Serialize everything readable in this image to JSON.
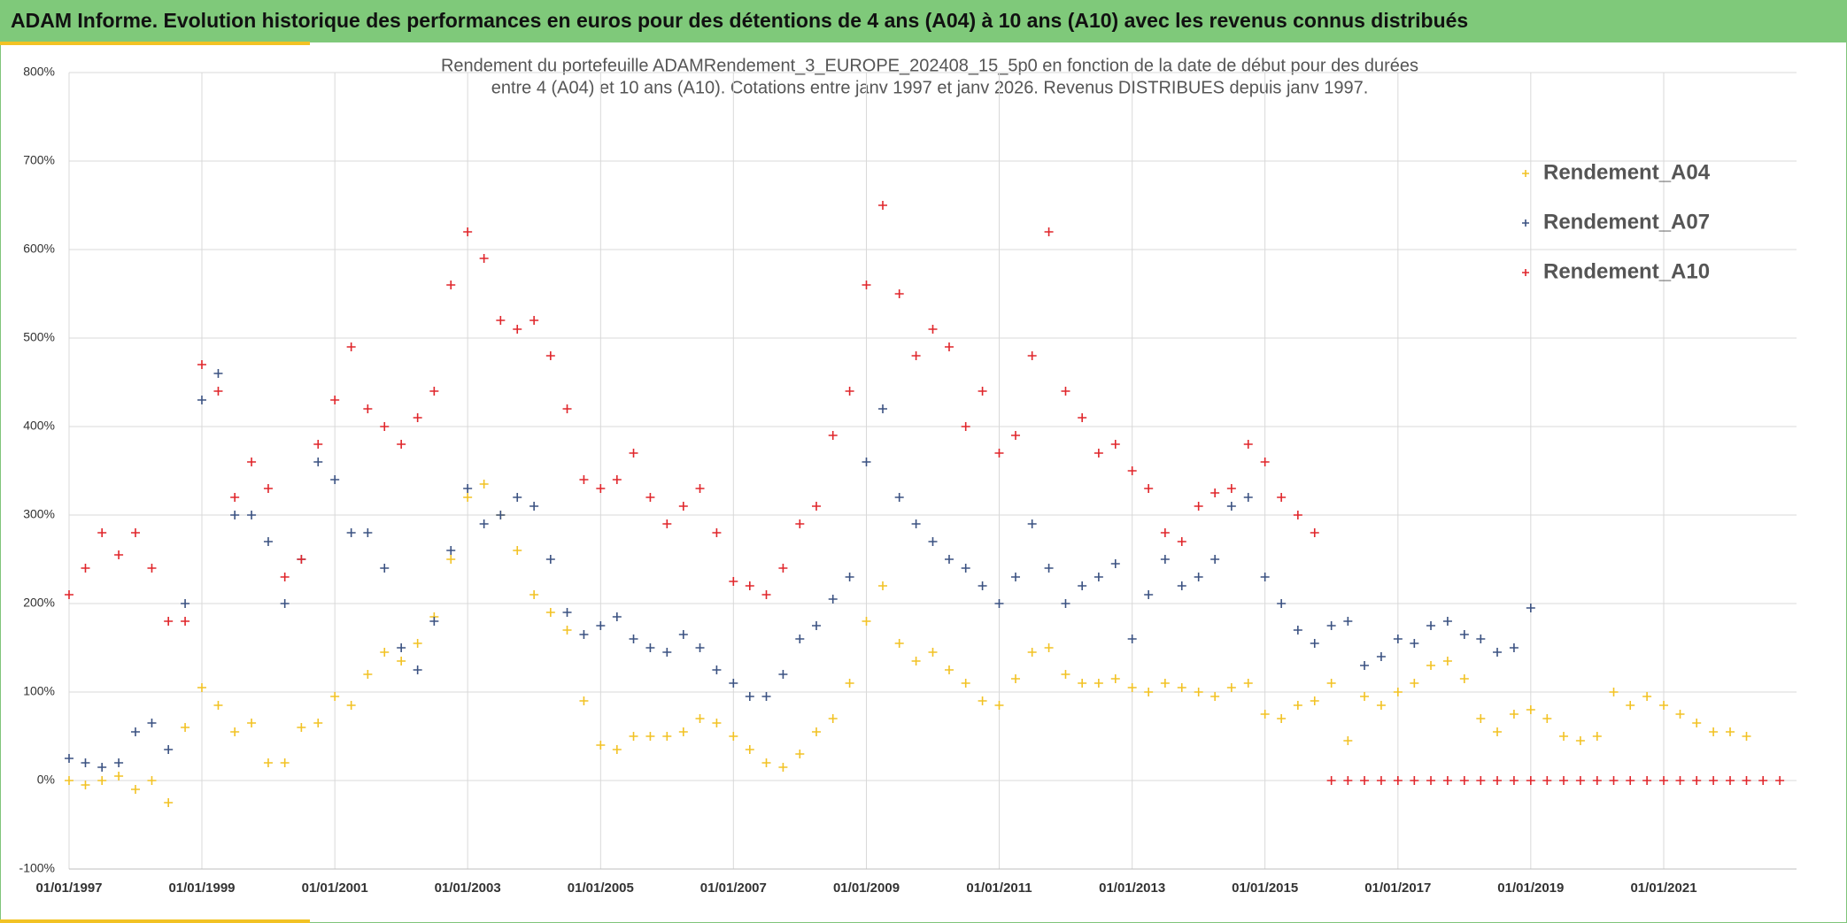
{
  "header": "ADAM Informe. Evolution historique des performances en euros pour des détentions de 4 ans (A04) à 10 ans (A10) avec les revenus connus distribués",
  "chart_data": {
    "type": "scatter",
    "title": [
      "Rendement du portefeuille ADAMRendement_3_EUROPE_202408_15_5p0  en fonction de la date de début pour des durées",
      "entre 4 (A04) et 10 ans (A10). Cotations entre janv 1997 et janv 2026. Revenus DISTRIBUES depuis janv 1997."
    ],
    "x": [
      "1997-01-01",
      "1997-04-01",
      "1997-07-01",
      "1997-10-01",
      "1998-01-01",
      "1998-04-01",
      "1998-07-01",
      "1998-10-01",
      "1999-01-01",
      "1999-04-01",
      "1999-07-01",
      "1999-10-01",
      "2000-01-01",
      "2000-04-01",
      "2000-07-01",
      "2000-10-01",
      "2001-01-01",
      "2001-04-01",
      "2001-07-01",
      "2001-10-01",
      "2002-01-01",
      "2002-04-01",
      "2002-07-01",
      "2002-10-01",
      "2003-01-01",
      "2003-04-01",
      "2003-07-01",
      "2003-10-01",
      "2004-01-01",
      "2004-04-01",
      "2004-07-01",
      "2004-10-01",
      "2005-01-01",
      "2005-04-01",
      "2005-07-01",
      "2005-10-01",
      "2006-01-01",
      "2006-04-01",
      "2006-07-01",
      "2006-10-01",
      "2007-01-01",
      "2007-04-01",
      "2007-07-01",
      "2007-10-01",
      "2008-01-01",
      "2008-04-01",
      "2008-07-01",
      "2008-10-01",
      "2009-01-01",
      "2009-04-01",
      "2009-07-01",
      "2009-10-01",
      "2010-01-01",
      "2010-04-01",
      "2010-07-01",
      "2010-10-01",
      "2011-01-01",
      "2011-04-01",
      "2011-07-01",
      "2011-10-01",
      "2012-01-01",
      "2012-04-01",
      "2012-07-01",
      "2012-10-01",
      "2013-01-01",
      "2013-04-01",
      "2013-07-01",
      "2013-10-01",
      "2014-01-01",
      "2014-04-01",
      "2014-07-01",
      "2014-10-01",
      "2015-01-01",
      "2015-04-01",
      "2015-07-01",
      "2015-10-01",
      "2016-01-01",
      "2016-04-01",
      "2016-07-01",
      "2016-10-01",
      "2017-01-01",
      "2017-04-01",
      "2017-07-01",
      "2017-10-01",
      "2018-01-01",
      "2018-04-01",
      "2018-07-01",
      "2018-10-01",
      "2019-01-01",
      "2019-04-01",
      "2019-07-01",
      "2019-10-01",
      "2020-01-01",
      "2020-04-01",
      "2020-07-01",
      "2020-10-01",
      "2021-01-01",
      "2021-04-01",
      "2021-07-01",
      "2021-10-01",
      "2022-01-01",
      "2022-04-01",
      "2022-07-01",
      "2022-10-01"
    ],
    "series": [
      {
        "name": "Rendement_A04",
        "color": "#f2c224",
        "values": [
          0,
          -5,
          0,
          5,
          -10,
          0,
          -25,
          60,
          105,
          85,
          55,
          65,
          20,
          20,
          60,
          65,
          95,
          85,
          120,
          145,
          135,
          155,
          185,
          250,
          320,
          335,
          300,
          260,
          210,
          190,
          170,
          90,
          40,
          35,
          50,
          50,
          50,
          55,
          70,
          65,
          50,
          35,
          20,
          15,
          30,
          55,
          70,
          110,
          180,
          220,
          155,
          135,
          145,
          125,
          110,
          90,
          85,
          115,
          145,
          150,
          120,
          110,
          110,
          115,
          105,
          100,
          110,
          105,
          100,
          95,
          105,
          110,
          75,
          70,
          85,
          90,
          110,
          45,
          95,
          85,
          100,
          110,
          130,
          135,
          115,
          70,
          55,
          75,
          80,
          70,
          50,
          45,
          50,
          100,
          85,
          95,
          85,
          75,
          65,
          55,
          55,
          50,
          null,
          null
        ]
      },
      {
        "name": "Rendement_A07",
        "color": "#3b5282",
        "values": [
          25,
          20,
          15,
          20,
          55,
          65,
          35,
          200,
          430,
          460,
          300,
          300,
          270,
          200,
          250,
          360,
          340,
          280,
          280,
          240,
          150,
          125,
          180,
          260,
          330,
          290,
          300,
          320,
          310,
          250,
          190,
          165,
          175,
          185,
          160,
          150,
          145,
          165,
          150,
          125,
          110,
          95,
          95,
          120,
          160,
          175,
          205,
          230,
          360,
          420,
          320,
          290,
          270,
          250,
          240,
          220,
          200,
          230,
          290,
          240,
          200,
          220,
          230,
          245,
          160,
          210,
          250,
          220,
          230,
          250,
          310,
          320,
          230,
          200,
          170,
          155,
          175,
          180,
          130,
          140,
          160,
          155,
          175,
          180,
          165,
          160,
          145,
          150,
          195,
          null,
          null,
          null,
          null,
          null,
          null,
          null,
          null,
          null,
          null,
          null,
          null,
          null,
          null,
          null
        ]
      },
      {
        "name": "Rendement_A10",
        "color": "#e0262b",
        "values": [
          210,
          240,
          280,
          255,
          280,
          240,
          180,
          180,
          470,
          440,
          320,
          360,
          330,
          230,
          250,
          380,
          430,
          490,
          420,
          400,
          380,
          410,
          440,
          560,
          620,
          590,
          520,
          510,
          520,
          480,
          420,
          340,
          330,
          340,
          370,
          320,
          290,
          310,
          330,
          280,
          225,
          220,
          210,
          240,
          290,
          310,
          390,
          440,
          560,
          650,
          550,
          480,
          510,
          490,
          400,
          440,
          370,
          390,
          480,
          620,
          440,
          410,
          370,
          380,
          350,
          330,
          280,
          270,
          310,
          325,
          330,
          380,
          360,
          320,
          300,
          280,
          0,
          0,
          0,
          0,
          0,
          0,
          0,
          0,
          0,
          0,
          0,
          0,
          0,
          0,
          0,
          0,
          0,
          0,
          0,
          0,
          0,
          0,
          0,
          0,
          0,
          0,
          0,
          0
        ]
      }
    ],
    "xlim": [
      "1997-01-01",
      "2023-01-01"
    ],
    "xticks": [
      {
        "value": "1997-01-01",
        "label": "01/01/1997"
      },
      {
        "value": "1999-01-01",
        "label": "01/01/1999"
      },
      {
        "value": "2001-01-01",
        "label": "01/01/2001"
      },
      {
        "value": "2003-01-01",
        "label": "01/01/2003"
      },
      {
        "value": "2005-01-01",
        "label": "01/01/2005"
      },
      {
        "value": "2007-01-01",
        "label": "01/01/2007"
      },
      {
        "value": "2009-01-01",
        "label": "01/01/2009"
      },
      {
        "value": "2011-01-01",
        "label": "01/01/2011"
      },
      {
        "value": "2013-01-01",
        "label": "01/01/2013"
      },
      {
        "value": "2015-01-01",
        "label": "01/01/2015"
      },
      {
        "value": "2017-01-01",
        "label": "01/01/2017"
      },
      {
        "value": "2019-01-01",
        "label": "01/01/2019"
      },
      {
        "value": "2021-01-01",
        "label": "01/01/2021"
      }
    ],
    "ylim": [
      -100,
      800
    ],
    "yticks": [
      {
        "value": -100,
        "label": "-100%"
      },
      {
        "value": 0,
        "label": "0%"
      },
      {
        "value": 100,
        "label": "100%"
      },
      {
        "value": 200,
        "label": "200%"
      },
      {
        "value": 300,
        "label": "300%"
      },
      {
        "value": 400,
        "label": "400%"
      },
      {
        "value": 500,
        "label": "500%"
      },
      {
        "value": 600,
        "label": "600%"
      },
      {
        "value": 700,
        "label": "700%"
      },
      {
        "value": 800,
        "label": "800%"
      }
    ],
    "grid": true,
    "legend": "top-right"
  }
}
